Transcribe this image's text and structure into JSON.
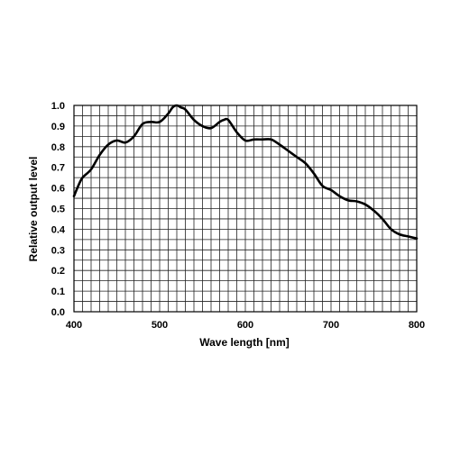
{
  "chart_data": {
    "type": "line",
    "title": "",
    "xlabel": "Wave length [nm]",
    "ylabel": "Relative output level",
    "xlim": [
      400,
      800
    ],
    "ylim": [
      0.0,
      1.0
    ],
    "x_ticks": [
      "400",
      "500",
      "600",
      "700",
      "800"
    ],
    "y_ticks": [
      "0.0",
      "0.1",
      "0.2",
      "0.3",
      "0.4",
      "0.5",
      "0.6",
      "0.7",
      "0.8",
      "0.9",
      "1.0"
    ],
    "grid": true,
    "grid_x_step": 10,
    "grid_y_step": 0.05,
    "legend": "none",
    "line_color": "#000000",
    "series": [
      {
        "x": [
          400,
          405,
          410,
          420,
          430,
          440,
          450,
          460,
          470,
          480,
          490,
          500,
          510,
          515,
          520,
          525,
          530,
          540,
          550,
          560,
          570,
          575,
          580,
          590,
          600,
          610,
          620,
          630,
          640,
          650,
          660,
          670,
          680,
          690,
          700,
          710,
          720,
          730,
          740,
          750,
          760,
          770,
          780,
          790,
          800
        ],
        "y": [
          0.56,
          0.61,
          0.65,
          0.69,
          0.76,
          0.81,
          0.83,
          0.82,
          0.85,
          0.91,
          0.92,
          0.92,
          0.96,
          0.99,
          1.0,
          0.99,
          0.98,
          0.93,
          0.9,
          0.89,
          0.92,
          0.93,
          0.93,
          0.87,
          0.83,
          0.835,
          0.835,
          0.835,
          0.81,
          0.78,
          0.75,
          0.72,
          0.67,
          0.61,
          0.59,
          0.56,
          0.54,
          0.535,
          0.52,
          0.49,
          0.45,
          0.4,
          0.375,
          0.365,
          0.355
        ]
      }
    ]
  }
}
